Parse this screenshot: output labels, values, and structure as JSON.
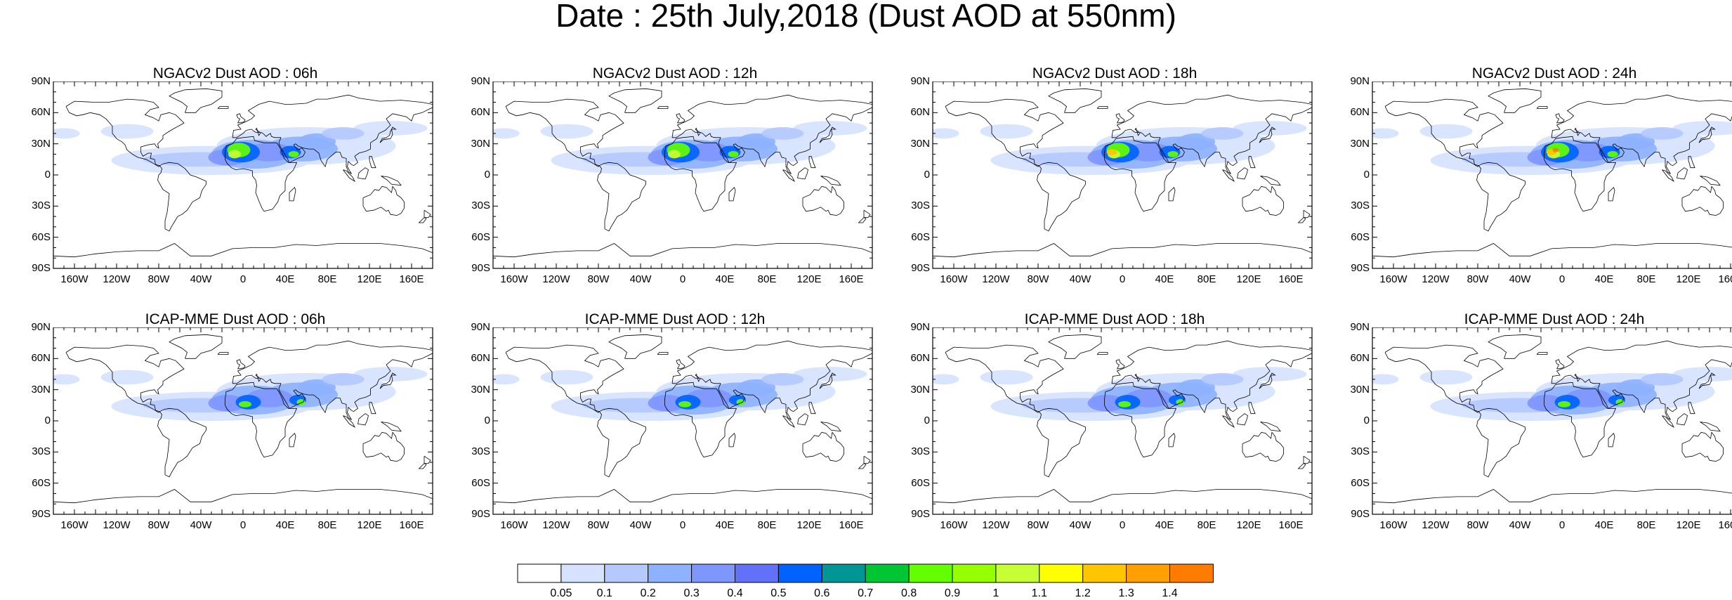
{
  "title": "Date : 25th July,2018 (Dust AOD at 550nm)",
  "map": {
    "lat_labels": [
      "90N",
      "60N",
      "30N",
      "0",
      "30S",
      "60S",
      "90S"
    ],
    "lon_labels": [
      "160W",
      "120W",
      "80W",
      "40W",
      "0",
      "40E",
      "80E",
      "120E",
      "160E"
    ],
    "lon_values": [
      -160,
      -120,
      -80,
      -40,
      0,
      40,
      80,
      120,
      160
    ],
    "lat_values": [
      90,
      60,
      30,
      0,
      -30,
      -60,
      -90
    ]
  },
  "panels": [
    {
      "title": "NGACv2 Dust AOD : 06h",
      "model": "NGACv2",
      "forecast_hour": "06h",
      "peak_level": 0.9
    },
    {
      "title": "NGACv2 Dust AOD : 12h",
      "model": "NGACv2",
      "forecast_hour": "12h",
      "peak_level": 1.0
    },
    {
      "title": "NGACv2 Dust AOD : 18h",
      "model": "NGACv2",
      "forecast_hour": "18h",
      "peak_level": 1.1
    },
    {
      "title": "NGACv2 Dust AOD : 24h",
      "model": "NGACv2",
      "forecast_hour": "24h",
      "peak_level": 1.3
    },
    {
      "title": "ICAP-MME Dust AOD : 06h",
      "model": "ICAP-MME",
      "forecast_hour": "06h",
      "peak_level": 0.9
    },
    {
      "title": "ICAP-MME Dust AOD : 12h",
      "model": "ICAP-MME",
      "forecast_hour": "12h",
      "peak_level": 0.9
    },
    {
      "title": "ICAP-MME Dust AOD : 18h",
      "model": "ICAP-MME",
      "forecast_hour": "18h",
      "peak_level": 0.9
    },
    {
      "title": "ICAP-MME Dust AOD : 24h",
      "model": "ICAP-MME",
      "forecast_hour": "24h",
      "peak_level": 1.0
    }
  ],
  "colorbar": {
    "labels": [
      "0.05",
      "0.1",
      "0.2",
      "0.3",
      "0.4",
      "0.5",
      "0.6",
      "0.7",
      "0.8",
      "0.9",
      "1",
      "1.1",
      "1.2",
      "1.3",
      "1.4"
    ],
    "colors": [
      "#ffffff",
      "#d6e2ff",
      "#b5c9ff",
      "#8eb2ff",
      "#7f96ff",
      "#6370f8",
      "#0063ff",
      "#009696",
      "#00c633",
      "#63ff00",
      "#96ff00",
      "#c6ff33",
      "#ffff00",
      "#ffc600",
      "#ffa000",
      "#ff7c00",
      "#ff1900"
    ]
  }
}
